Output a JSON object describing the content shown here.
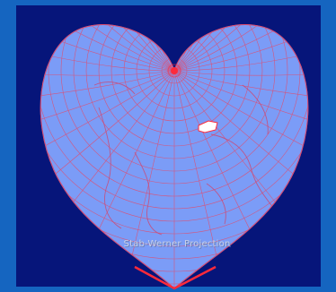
{
  "projection": {
    "caption": "Stab-Werner Projection",
    "pole_marker": "north-pole-marker"
  },
  "colors": {
    "outer_background": "#1565c0",
    "panel_background": "#06157a",
    "map_fill": "#7b9cf7",
    "graticule": "#e34a6a",
    "coastline": "#c94a78",
    "pole": "#ff2a3a",
    "highlight": "#ffffff"
  },
  "icons": [
    "north-pole-marker-icon",
    "highlight-region-icon"
  ]
}
